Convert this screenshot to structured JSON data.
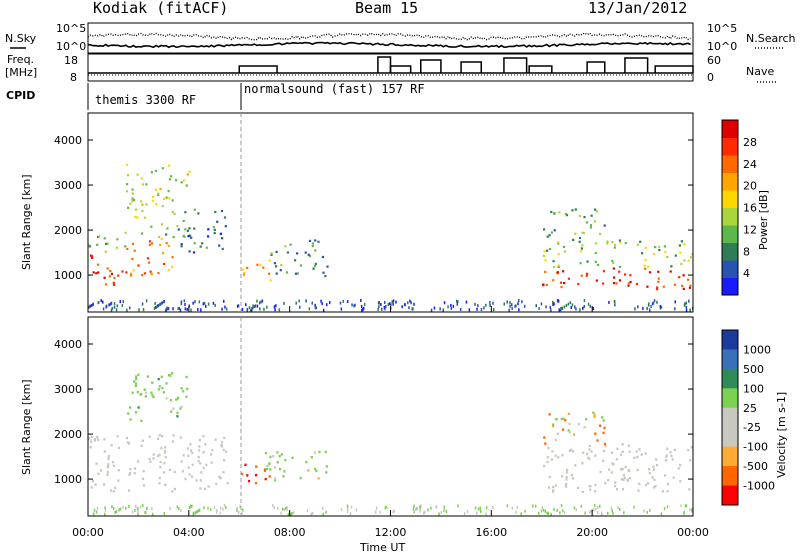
{
  "header": {
    "station": "Kodiak (fitACF)",
    "beam": "Beam 15",
    "date": "13/Jan/2012"
  },
  "summary_panels": {
    "nsky_label": "N.Sky",
    "nsearch_label": "N.Search",
    "freq_label_1": "Freq.",
    "freq_label_2": "[MHz]",
    "nave_label": "Nave",
    "cpid_label": "CPID",
    "noise_ticks_left": [
      "10^5",
      "10^0"
    ],
    "noise_ticks_right": [
      "10^5",
      "10^0"
    ],
    "freq_ticks": [
      "18",
      "8"
    ],
    "nave_ticks": [
      "60",
      "0"
    ],
    "modes": [
      {
        "label": "themis 3300 RF",
        "start_hour": 0
      },
      {
        "label": "normalsound (fast) 157 RF",
        "start_hour": 6
      }
    ]
  },
  "colors": {
    "power_scale": [
      "#1a1aff",
      "#2a52b0",
      "#2e7d55",
      "#5cb84a",
      "#a8d63c",
      "#ffd700",
      "#ffa500",
      "#ff6a00",
      "#ff2a00",
      "#e00000"
    ],
    "velocity_scale": [
      "#ff0000",
      "#ff6600",
      "#ffaa33",
      "#c8c8c0",
      "#c8c8c0",
      "#7bd152",
      "#2e8b57",
      "#3a70b8",
      "#1a3a9c"
    ]
  },
  "chart_data": [
    {
      "type": "heatmap",
      "title": "Power",
      "xlabel": "Time UT",
      "ylabel": "Slant Range [km]",
      "colorbar_label": "Power [dB]",
      "x_ticks": [
        "00:00",
        "04:00",
        "08:00",
        "12:00",
        "16:00",
        "20:00",
        "00:00"
      ],
      "y_ticks": [
        "1000",
        "2000",
        "3000",
        "4000"
      ],
      "xlim_hours": [
        0,
        24
      ],
      "ylim_km": [
        180,
        4600
      ],
      "colorbar_ticks": [
        "4",
        "8",
        "12",
        "16",
        "20",
        "24",
        "28"
      ],
      "clim": [
        0,
        30
      ],
      "scatter_regions": [
        {
          "t0": 0.0,
          "t1": 1.5,
          "r0": 750,
          "r1": 1500,
          "level": 27
        },
        {
          "t0": 0.0,
          "t1": 1.5,
          "r0": 1500,
          "r1": 2000,
          "level": 10
        },
        {
          "t0": 1.5,
          "t1": 3.5,
          "r0": 1000,
          "r1": 1800,
          "level": 22
        },
        {
          "t0": 2.0,
          "t1": 4.0,
          "r0": 1800,
          "r1": 2200,
          "level": 12
        },
        {
          "t0": 3.5,
          "t1": 5.5,
          "r0": 1500,
          "r1": 2500,
          "level": 7
        },
        {
          "t0": 1.5,
          "t1": 4.0,
          "r0": 2300,
          "r1": 3500,
          "level": 14
        },
        {
          "t0": 6.0,
          "t1": 7.2,
          "r0": 900,
          "r1": 1400,
          "level": 20
        },
        {
          "t0": 7.0,
          "t1": 9.5,
          "r0": 1000,
          "r1": 1800,
          "level": 8
        },
        {
          "t0": 18.0,
          "t1": 24.0,
          "r0": 700,
          "r1": 1200,
          "level": 26
        },
        {
          "t0": 18.0,
          "t1": 24.0,
          "r0": 1200,
          "r1": 1800,
          "level": 12
        },
        {
          "t0": 18.0,
          "t1": 20.5,
          "r0": 1800,
          "r1": 2500,
          "level": 10
        }
      ]
    },
    {
      "type": "heatmap",
      "title": "Velocity",
      "xlabel": "Time UT",
      "ylabel": "Slant Range [km]",
      "colorbar_label": "Velocity [m s-1]",
      "x_ticks": [
        "00:00",
        "04:00",
        "08:00",
        "12:00",
        "16:00",
        "20:00",
        "00:00"
      ],
      "y_ticks": [
        "1000",
        "2000",
        "3000",
        "4000"
      ],
      "xlim_hours": [
        0,
        24
      ],
      "ylim_km": [
        180,
        4600
      ],
      "colorbar_ticks": [
        "1000",
        "500",
        "100",
        "25",
        "-25",
        "-100",
        "-500",
        "-1000"
      ],
      "scatter_regions": [
        {
          "t0": 0.0,
          "t1": 5.5,
          "r0": 750,
          "r1": 2000,
          "vel": 0
        },
        {
          "t0": 1.5,
          "t1": 4.0,
          "r0": 2300,
          "r1": 3400,
          "vel": 300
        },
        {
          "t0": 6.0,
          "t1": 7.2,
          "r0": 900,
          "r1": 1400,
          "vel": -400
        },
        {
          "t0": 7.0,
          "t1": 9.5,
          "r0": 1000,
          "r1": 1700,
          "vel": 200
        },
        {
          "t0": 18.0,
          "t1": 24.0,
          "r0": 700,
          "r1": 1800,
          "vel": 0
        },
        {
          "t0": 18.0,
          "t1": 20.5,
          "r0": 1800,
          "r1": 2500,
          "vel": 50
        }
      ]
    }
  ]
}
